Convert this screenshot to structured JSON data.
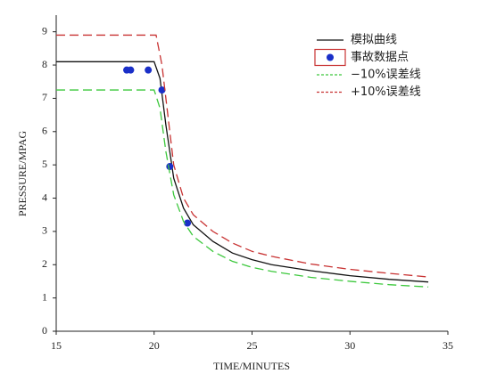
{
  "chart_data": {
    "type": "line",
    "xlabel": "TIME/MINUTES",
    "ylabel": "PRESSURE/MPAG",
    "xlim": [
      15,
      35
    ],
    "xticks": [
      15,
      20,
      25,
      30,
      35
    ],
    "ylim": [
      0,
      9.5
    ],
    "yticks": [
      0,
      1,
      2,
      3,
      4,
      5,
      6,
      7,
      8,
      9
    ],
    "series": [
      {
        "name": "模拟曲线",
        "kind": "line",
        "dash": "none",
        "color": "#111111",
        "x": [
          15,
          20,
          20.3,
          20.6,
          21,
          21.5,
          22,
          23,
          24,
          25,
          26,
          28,
          30,
          32,
          34
        ],
        "values": [
          8.1,
          8.1,
          7.6,
          6.2,
          4.6,
          3.7,
          3.2,
          2.7,
          2.35,
          2.15,
          2.0,
          1.82,
          1.67,
          1.56,
          1.48
        ]
      },
      {
        "name": "事故数据点",
        "kind": "scatter",
        "dash": "none",
        "color": "#1a2fc8",
        "x": [
          18.6,
          18.8,
          19.7,
          20.4,
          20.8,
          21.7
        ],
        "values": [
          7.85,
          7.85,
          7.85,
          7.25,
          4.95,
          3.25
        ]
      },
      {
        "name": "−10%误差线",
        "kind": "line",
        "dash": "10 5",
        "color": "#3cc83c",
        "x": [
          15,
          20,
          20.3,
          20.6,
          21,
          21.5,
          22,
          23,
          24,
          25,
          26,
          28,
          30,
          32,
          34
        ],
        "values": [
          7.25,
          7.25,
          6.7,
          5.4,
          4.1,
          3.3,
          2.85,
          2.4,
          2.1,
          1.92,
          1.8,
          1.62,
          1.5,
          1.4,
          1.33
        ]
      },
      {
        "name": "+10%误差线",
        "kind": "line",
        "dash": "10 5",
        "color": "#c83232",
        "x": [
          15,
          20.1,
          20.4,
          20.7,
          21,
          21.5,
          22,
          23,
          24,
          25,
          26,
          28,
          30,
          32,
          34
        ],
        "values": [
          8.9,
          8.9,
          8.0,
          6.5,
          5.0,
          4.0,
          3.5,
          3.0,
          2.65,
          2.4,
          2.25,
          2.02,
          1.86,
          1.74,
          1.63
        ]
      }
    ]
  }
}
